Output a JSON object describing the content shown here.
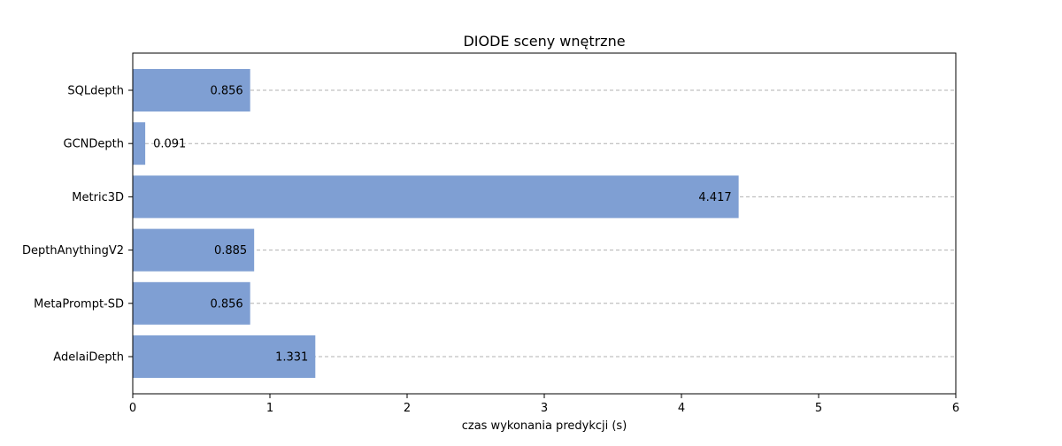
{
  "chart_data": {
    "type": "bar",
    "orientation": "horizontal",
    "title": "DIODE sceny wnętrzne",
    "xlabel": "czas wykonania predykcji (s)",
    "ylabel": "",
    "categories": [
      "SQLdepth",
      "GCNDepth",
      "Metric3D",
      "DepthAnythingV2",
      "MetaPrompt-SD",
      "AdelaiDepth"
    ],
    "values": [
      0.856,
      0.091,
      4.417,
      0.885,
      0.856,
      1.331
    ],
    "data_labels": [
      "0.856",
      "0.091",
      "4.417",
      "0.885",
      "0.856",
      "1.331"
    ],
    "xlim": [
      0,
      6
    ],
    "xticks": [
      0,
      1,
      2,
      3,
      4,
      5,
      6
    ],
    "xtick_labels": [
      "0",
      "1",
      "2",
      "3",
      "4",
      "5",
      "6"
    ],
    "grid": "dashed horizontal lines at each category",
    "legend": "none",
    "colors": {
      "bar": "#7f9fd3",
      "grid": "#b0b0b0",
      "axes": "#000000"
    }
  }
}
